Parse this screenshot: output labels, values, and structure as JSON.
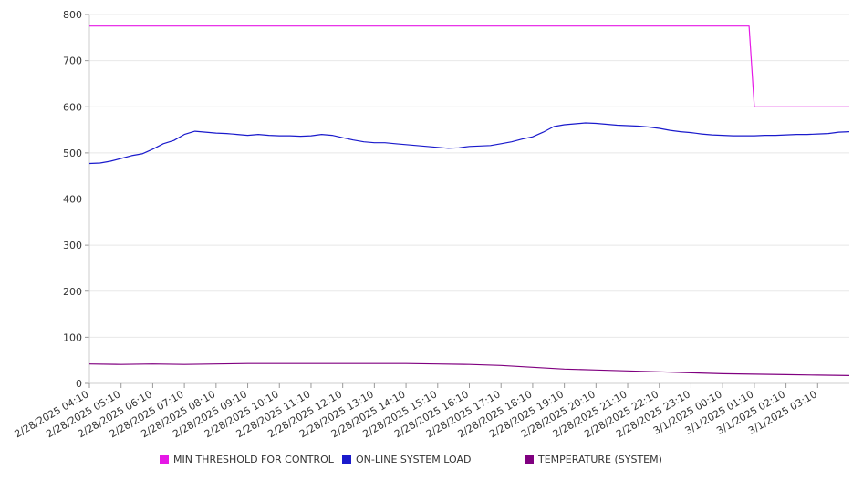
{
  "chart_data": {
    "type": "line",
    "y_ticks": [
      0,
      100,
      200,
      300,
      400,
      500,
      600,
      700,
      800
    ],
    "ylim": [
      0,
      800
    ],
    "x_tick_labels": [
      "2/28/2025 04:10",
      "2/28/2025 05:10",
      "2/28/2025 06:10",
      "2/28/2025 07:10",
      "2/28/2025 08:10",
      "2/28/2025 09:10",
      "2/28/2025 10:10",
      "2/28/2025 11:10",
      "2/28/2025 12:10",
      "2/28/2025 13:10",
      "2/28/2025 14:10",
      "2/28/2025 15:10",
      "2/28/2025 16:10",
      "2/28/2025 17:10",
      "2/28/2025 18:10",
      "2/28/2025 19:10",
      "2/28/2025 20:10",
      "2/28/2025 21:10",
      "2/28/2025 22:10",
      "2/28/2025 23:10",
      "3/1/2025 00:10",
      "3/1/2025 01:10",
      "3/1/2025 02:10",
      "3/1/2025 03:10"
    ],
    "x_end": "3/1/2025 04:10",
    "grid": true,
    "legend_position": "bottom",
    "series": [
      {
        "name": "MIN THRESHOLD FOR CONTROL",
        "color": "#e619e6",
        "points": [
          [
            "2/28/2025 04:10",
            775
          ],
          [
            "3/1/2025 01:00",
            775
          ],
          [
            "3/1/2025 01:10",
            600
          ],
          [
            "3/1/2025 04:10",
            600
          ]
        ]
      },
      {
        "name": "ON-LINE SYSTEM LOAD",
        "color": "#1a1acc",
        "points": [
          [
            "2/28/2025 04:10",
            477
          ],
          [
            "2/28/2025 04:30",
            478
          ],
          [
            "2/28/2025 04:50",
            482
          ],
          [
            "2/28/2025 05:10",
            488
          ],
          [
            "2/28/2025 05:30",
            494
          ],
          [
            "2/28/2025 05:50",
            498
          ],
          [
            "2/28/2025 06:10",
            508
          ],
          [
            "2/28/2025 06:30",
            520
          ],
          [
            "2/28/2025 06:50",
            527
          ],
          [
            "2/28/2025 07:10",
            540
          ],
          [
            "2/28/2025 07:30",
            547
          ],
          [
            "2/28/2025 07:50",
            545
          ],
          [
            "2/28/2025 08:10",
            543
          ],
          [
            "2/28/2025 08:30",
            542
          ],
          [
            "2/28/2025 08:50",
            540
          ],
          [
            "2/28/2025 09:10",
            538
          ],
          [
            "2/28/2025 09:30",
            540
          ],
          [
            "2/28/2025 09:50",
            538
          ],
          [
            "2/28/2025 10:10",
            537
          ],
          [
            "2/28/2025 10:30",
            537
          ],
          [
            "2/28/2025 10:50",
            536
          ],
          [
            "2/28/2025 11:10",
            537
          ],
          [
            "2/28/2025 11:30",
            540
          ],
          [
            "2/28/2025 11:50",
            538
          ],
          [
            "2/28/2025 12:10",
            533
          ],
          [
            "2/28/2025 12:30",
            528
          ],
          [
            "2/28/2025 12:50",
            524
          ],
          [
            "2/28/2025 13:10",
            522
          ],
          [
            "2/28/2025 13:30",
            522
          ],
          [
            "2/28/2025 13:50",
            520
          ],
          [
            "2/28/2025 14:10",
            518
          ],
          [
            "2/28/2025 14:30",
            516
          ],
          [
            "2/28/2025 14:50",
            514
          ],
          [
            "2/28/2025 15:10",
            512
          ],
          [
            "2/28/2025 15:30",
            510
          ],
          [
            "2/28/2025 15:50",
            511
          ],
          [
            "2/28/2025 16:10",
            514
          ],
          [
            "2/28/2025 16:30",
            515
          ],
          [
            "2/28/2025 16:50",
            516
          ],
          [
            "2/28/2025 17:10",
            520
          ],
          [
            "2/28/2025 17:30",
            524
          ],
          [
            "2/28/2025 17:50",
            530
          ],
          [
            "2/28/2025 18:10",
            535
          ],
          [
            "2/28/2025 18:30",
            545
          ],
          [
            "2/28/2025 18:50",
            557
          ],
          [
            "2/28/2025 19:10",
            561
          ],
          [
            "2/28/2025 19:30",
            563
          ],
          [
            "2/28/2025 19:50",
            565
          ],
          [
            "2/28/2025 20:10",
            564
          ],
          [
            "2/28/2025 20:30",
            562
          ],
          [
            "2/28/2025 20:50",
            560
          ],
          [
            "2/28/2025 21:10",
            559
          ],
          [
            "2/28/2025 21:30",
            558
          ],
          [
            "2/28/2025 21:50",
            556
          ],
          [
            "2/28/2025 22:10",
            553
          ],
          [
            "2/28/2025 22:30",
            549
          ],
          [
            "2/28/2025 22:50",
            546
          ],
          [
            "2/28/2025 23:10",
            544
          ],
          [
            "2/28/2025 23:30",
            541
          ],
          [
            "2/28/2025 23:50",
            539
          ],
          [
            "3/1/2025 00:10",
            538
          ],
          [
            "3/1/2025 00:30",
            537
          ],
          [
            "3/1/2025 00:50",
            537
          ],
          [
            "3/1/2025 01:10",
            537
          ],
          [
            "3/1/2025 01:30",
            538
          ],
          [
            "3/1/2025 01:50",
            538
          ],
          [
            "3/1/2025 02:10",
            539
          ],
          [
            "3/1/2025 02:30",
            540
          ],
          [
            "3/1/2025 02:50",
            540
          ],
          [
            "3/1/2025 03:10",
            541
          ],
          [
            "3/1/2025 03:30",
            542
          ],
          [
            "3/1/2025 03:50",
            545
          ],
          [
            "3/1/2025 04:10",
            546
          ]
        ]
      },
      {
        "name": "TEMPERATURE (SYSTEM)",
        "color": "#800080",
        "points": [
          [
            "2/28/2025 04:10",
            42
          ],
          [
            "2/28/2025 05:10",
            41
          ],
          [
            "2/28/2025 06:10",
            42
          ],
          [
            "2/28/2025 07:10",
            41
          ],
          [
            "2/28/2025 08:10",
            42
          ],
          [
            "2/28/2025 09:10",
            43
          ],
          [
            "2/28/2025 10:10",
            43
          ],
          [
            "2/28/2025 11:10",
            43
          ],
          [
            "2/28/2025 12:10",
            43
          ],
          [
            "2/28/2025 13:10",
            43
          ],
          [
            "2/28/2025 14:10",
            43
          ],
          [
            "2/28/2025 15:10",
            42
          ],
          [
            "2/28/2025 16:10",
            41
          ],
          [
            "2/28/2025 17:10",
            39
          ],
          [
            "2/28/2025 18:10",
            35
          ],
          [
            "2/28/2025 19:10",
            31
          ],
          [
            "2/28/2025 20:10",
            29
          ],
          [
            "2/28/2025 21:10",
            27
          ],
          [
            "2/28/2025 22:10",
            25
          ],
          [
            "2/28/2025 23:10",
            23
          ],
          [
            "3/1/2025 00:10",
            21
          ],
          [
            "3/1/2025 01:10",
            20
          ],
          [
            "3/1/2025 02:10",
            19
          ],
          [
            "3/1/2025 03:10",
            18
          ],
          [
            "3/1/2025 04:10",
            17
          ]
        ]
      }
    ]
  }
}
